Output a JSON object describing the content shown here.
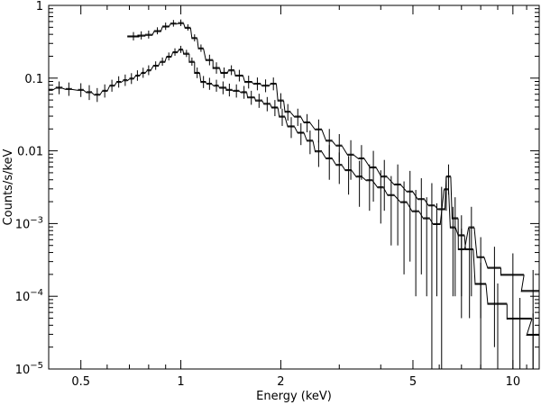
{
  "chart_data": {
    "type": "scatter",
    "title": "",
    "xlabel": "Energy (keV)",
    "ylabel": "Counts/s/keV",
    "xscale": "log",
    "yscale": "log",
    "xlim": [
      0.4,
      12
    ],
    "ylim": [
      1e-05,
      1
    ],
    "x_ticks": [
      {
        "value": 0.5,
        "label": "0.5"
      },
      {
        "value": 1,
        "label": "1"
      },
      {
        "value": 2,
        "label": "2"
      },
      {
        "value": 5,
        "label": "5"
      },
      {
        "value": 10,
        "label": "10"
      }
    ],
    "y_ticks": [
      {
        "value": 1,
        "label": "1"
      },
      {
        "value": 0.1,
        "label": "0.1"
      },
      {
        "value": 0.01,
        "label": "0.01"
      },
      {
        "value": 0.001,
        "base": "10",
        "exp": "−3"
      },
      {
        "value": 0.0001,
        "base": "10",
        "exp": "−4"
      },
      {
        "value": 1e-05,
        "base": "10",
        "exp": "−5"
      }
    ],
    "legend": "none",
    "grid": false,
    "series": [
      {
        "points": [
          [
            0.72,
            0.38,
            0.03,
            0.05
          ],
          [
            0.76,
            0.39,
            0.02,
            0.05
          ],
          [
            0.8,
            0.4,
            0.02,
            0.05
          ],
          [
            0.85,
            0.45,
            0.02,
            0.05
          ],
          [
            0.9,
            0.52,
            0.02,
            0.06
          ],
          [
            0.95,
            0.57,
            0.02,
            0.06
          ],
          [
            1.0,
            0.58,
            0.02,
            0.06
          ],
          [
            1.05,
            0.5,
            0.02,
            0.05
          ],
          [
            1.1,
            0.36,
            0.02,
            0.04
          ],
          [
            1.15,
            0.26,
            0.02,
            0.03
          ],
          [
            1.22,
            0.18,
            0.03,
            0.03
          ],
          [
            1.28,
            0.14,
            0.03,
            0.025
          ],
          [
            1.35,
            0.12,
            0.03,
            0.02
          ],
          [
            1.42,
            0.13,
            0.03,
            0.02
          ],
          [
            1.5,
            0.11,
            0.04,
            0.02
          ],
          [
            1.6,
            0.09,
            0.04,
            0.018
          ],
          [
            1.7,
            0.085,
            0.04,
            0.017
          ],
          [
            1.8,
            0.08,
            0.04,
            0.016
          ],
          [
            1.9,
            0.085,
            0.04,
            0.017
          ],
          [
            2.0,
            0.05,
            0.04,
            0.012
          ],
          [
            2.1,
            0.035,
            0.04,
            0.009
          ],
          [
            2.25,
            0.03,
            0.05,
            0.008
          ],
          [
            2.4,
            0.025,
            0.05,
            0.007
          ],
          [
            2.6,
            0.02,
            0.06,
            0.007
          ],
          [
            2.8,
            0.014,
            0.06,
            0.006
          ],
          [
            3.0,
            0.012,
            0.06,
            0.005
          ],
          [
            3.25,
            0.009,
            0.07,
            0.005
          ],
          [
            3.5,
            0.008,
            0.07,
            0.004
          ],
          [
            3.8,
            0.006,
            0.08,
            0.004
          ],
          [
            4.1,
            0.0045,
            0.08,
            0.003
          ],
          [
            4.5,
            0.0035,
            0.1,
            0.003
          ],
          [
            4.9,
            0.0028,
            0.1,
            0.0025
          ],
          [
            5.3,
            0.0022,
            0.12,
            0.002
          ],
          [
            5.7,
            0.0018,
            0.12,
            0.0018
          ],
          [
            6.1,
            0.0016,
            0.14,
            0.0016
          ],
          [
            6.4,
            0.0045,
            0.1,
            0.002
          ],
          [
            6.7,
            0.0012,
            0.14,
            0.0011
          ],
          [
            7.0,
            0.00045,
            0.15,
            0.0004
          ],
          [
            7.5,
            0.0009,
            0.15,
            0.0008
          ],
          [
            8.0,
            0.00035,
            0.2,
            0.0003
          ],
          [
            8.8,
            0.00025,
            0.4,
            0.00023
          ],
          [
            10.0,
            0.0002,
            0.8,
            0.00019
          ],
          [
            11.5,
            0.00012,
            0.9,
            0.00011
          ]
        ]
      },
      {
        "points": [
          [
            0.4,
            0.07,
            0.01,
            0.015
          ],
          [
            0.43,
            0.075,
            0.01,
            0.015
          ],
          [
            0.46,
            0.072,
            0.01,
            0.015
          ],
          [
            0.5,
            0.07,
            0.01,
            0.015
          ],
          [
            0.53,
            0.065,
            0.01,
            0.015
          ],
          [
            0.56,
            0.06,
            0.01,
            0.013
          ],
          [
            0.59,
            0.068,
            0.01,
            0.014
          ],
          [
            0.62,
            0.08,
            0.01,
            0.015
          ],
          [
            0.65,
            0.09,
            0.01,
            0.016
          ],
          [
            0.68,
            0.095,
            0.01,
            0.017
          ],
          [
            0.71,
            0.1,
            0.01,
            0.017
          ],
          [
            0.74,
            0.11,
            0.01,
            0.018
          ],
          [
            0.77,
            0.12,
            0.01,
            0.019
          ],
          [
            0.8,
            0.13,
            0.01,
            0.02
          ],
          [
            0.84,
            0.15,
            0.015,
            0.02
          ],
          [
            0.88,
            0.17,
            0.015,
            0.022
          ],
          [
            0.92,
            0.2,
            0.015,
            0.025
          ],
          [
            0.96,
            0.23,
            0.015,
            0.027
          ],
          [
            1.0,
            0.25,
            0.015,
            0.028
          ],
          [
            1.04,
            0.22,
            0.02,
            0.025
          ],
          [
            1.08,
            0.17,
            0.02,
            0.022
          ],
          [
            1.12,
            0.12,
            0.02,
            0.02
          ],
          [
            1.17,
            0.09,
            0.02,
            0.017
          ],
          [
            1.22,
            0.085,
            0.02,
            0.016
          ],
          [
            1.28,
            0.08,
            0.02,
            0.015
          ],
          [
            1.34,
            0.075,
            0.03,
            0.015
          ],
          [
            1.4,
            0.07,
            0.03,
            0.014
          ],
          [
            1.47,
            0.068,
            0.03,
            0.014
          ],
          [
            1.55,
            0.065,
            0.03,
            0.013
          ],
          [
            1.63,
            0.055,
            0.04,
            0.012
          ],
          [
            1.72,
            0.05,
            0.04,
            0.011
          ],
          [
            1.82,
            0.045,
            0.04,
            0.01
          ],
          [
            1.92,
            0.04,
            0.04,
            0.01
          ],
          [
            2.02,
            0.03,
            0.04,
            0.008
          ],
          [
            2.15,
            0.022,
            0.05,
            0.007
          ],
          [
            2.3,
            0.018,
            0.05,
            0.006
          ],
          [
            2.45,
            0.014,
            0.05,
            0.005
          ],
          [
            2.6,
            0.01,
            0.06,
            0.004
          ],
          [
            2.8,
            0.008,
            0.06,
            0.004
          ],
          [
            3.0,
            0.0065,
            0.06,
            0.003
          ],
          [
            3.2,
            0.0055,
            0.07,
            0.003
          ],
          [
            3.45,
            0.0045,
            0.07,
            0.0028
          ],
          [
            3.7,
            0.004,
            0.08,
            0.0025
          ],
          [
            4.0,
            0.0032,
            0.08,
            0.0022
          ],
          [
            4.3,
            0.0025,
            0.1,
            0.002
          ],
          [
            4.7,
            0.002,
            0.1,
            0.0018
          ],
          [
            5.1,
            0.0015,
            0.12,
            0.0014
          ],
          [
            5.5,
            0.0012,
            0.12,
            0.0011
          ],
          [
            5.9,
            0.001,
            0.14,
            0.0009
          ],
          [
            6.3,
            0.003,
            0.1,
            0.0015
          ],
          [
            6.6,
            0.0009,
            0.12,
            0.0008
          ],
          [
            7.0,
            0.0007,
            0.15,
            0.0006
          ],
          [
            7.4,
            0.00045,
            0.2,
            0.0004
          ],
          [
            8.0,
            0.00015,
            0.3,
            0.00014
          ],
          [
            9.0,
            8e-05,
            0.6,
            7e-05
          ],
          [
            10.5,
            5e-05,
            0.9,
            4.5e-05
          ],
          [
            11.5,
            3e-05,
            0.5,
            2.8e-05
          ]
        ]
      }
    ]
  }
}
